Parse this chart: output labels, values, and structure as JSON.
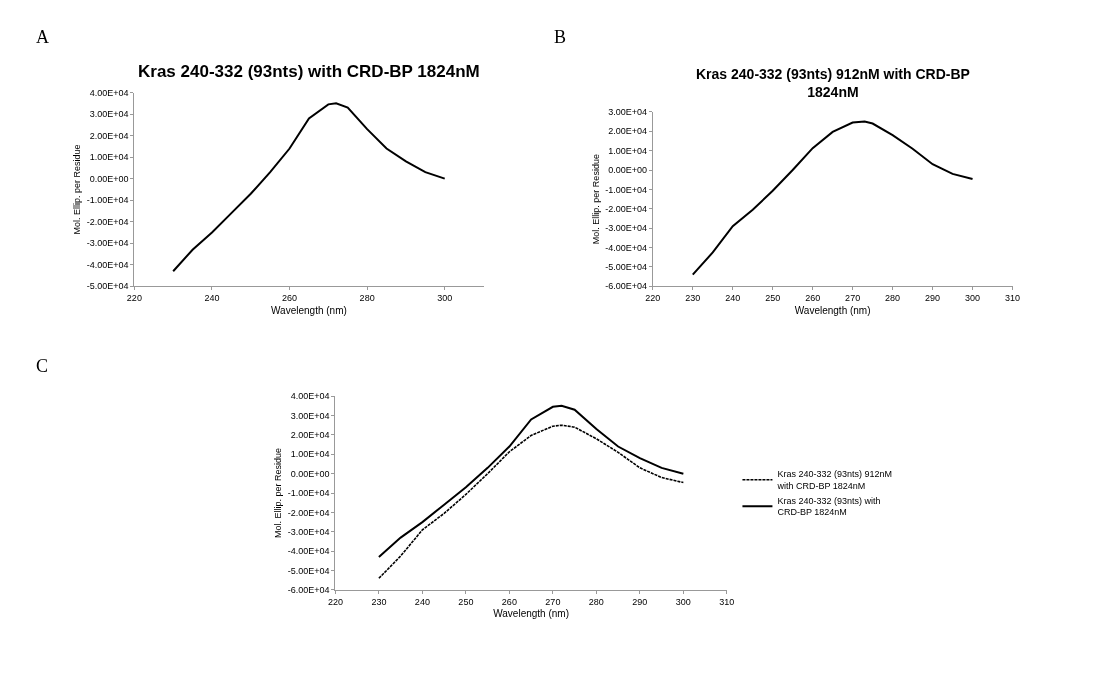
{
  "chart_data": [
    {
      "type": "line",
      "title": "Kras 240-332 (93nts) with CRD-BP 1824nM",
      "xlabel": "Wavelength (nm)",
      "ylabel": "Mol. Ellip. per Residue",
      "annotations": [
        "A"
      ],
      "x": [
        230,
        235,
        240,
        245,
        250,
        255,
        260,
        265,
        270,
        272,
        275,
        280,
        285,
        290,
        295,
        300
      ],
      "series": [
        {
          "color": "#000000",
          "line_style": "solid",
          "values": [
            -43000,
            -33000,
            -25000,
            -16000,
            -7000,
            3000,
            14000,
            28000,
            34500,
            35000,
            33000,
            23000,
            14000,
            8000,
            3000,
            0
          ]
        }
      ],
      "xlim": [
        220,
        310
      ],
      "ylim": [
        -50000,
        40000
      ],
      "xticks": [
        220,
        240,
        260,
        280,
        300
      ],
      "yticks": [
        {
          "value": -50000,
          "label": "-5.00E+04"
        },
        {
          "value": -40000,
          "label": "-4.00E+04"
        },
        {
          "value": -30000,
          "label": "-3.00E+04"
        },
        {
          "value": -20000,
          "label": "-2.00E+04"
        },
        {
          "value": -10000,
          "label": "-1.00E+04"
        },
        {
          "value": 0,
          "label": "0.00E+00"
        },
        {
          "value": 10000,
          "label": "1.00E+04"
        },
        {
          "value": 20000,
          "label": "2.00E+04"
        },
        {
          "value": 30000,
          "label": "3.00E+04"
        },
        {
          "value": 40000,
          "label": "4.00E+04"
        }
      ],
      "grid": false
    },
    {
      "type": "line",
      "title": "Kras 240-332 (93nts) 912nM with CRD-BP 1824nM",
      "xlabel": "Wavelength (nm)",
      "ylabel": "Mol. Ellip. per Residue",
      "annotations": [
        "B"
      ],
      "x": [
        230,
        235,
        240,
        245,
        250,
        255,
        260,
        265,
        270,
        273,
        275,
        280,
        285,
        290,
        295,
        300
      ],
      "series": [
        {
          "color": "#000000",
          "line_style": "solid",
          "values": [
            -54000,
            -42500,
            -29000,
            -20500,
            -10700,
            0,
            11300,
            19700,
            24500,
            25000,
            24000,
            18000,
            11000,
            3000,
            -2000,
            -4600
          ]
        }
      ],
      "xlim": [
        220,
        310
      ],
      "ylim": [
        -60000,
        30000
      ],
      "xticks": [
        220,
        230,
        240,
        250,
        260,
        270,
        280,
        290,
        300,
        310
      ],
      "yticks": [
        {
          "value": -60000,
          "label": "-6.00E+04"
        },
        {
          "value": -50000,
          "label": "-5.00E+04"
        },
        {
          "value": -40000,
          "label": "-4.00E+04"
        },
        {
          "value": -30000,
          "label": "-3.00E+04"
        },
        {
          "value": -20000,
          "label": "-2.00E+04"
        },
        {
          "value": -10000,
          "label": "-1.00E+04"
        },
        {
          "value": 0,
          "label": "0.00E+00"
        },
        {
          "value": 10000,
          "label": "1.00E+04"
        },
        {
          "value": 20000,
          "label": "2.00E+04"
        },
        {
          "value": 30000,
          "label": "3.00E+04"
        }
      ],
      "grid": false
    },
    {
      "type": "line",
      "xlabel": "Wavelength (nm)",
      "ylabel": "Mol. Ellip. per Residue",
      "annotations": [
        "C"
      ],
      "x": [
        230,
        235,
        240,
        245,
        250,
        255,
        260,
        265,
        270,
        272,
        275,
        280,
        285,
        290,
        295,
        300
      ],
      "series": [
        {
          "name": "Kras 240-332 (93nts) 912nM with CRD-BP 1824nM",
          "color": "#000000",
          "line_style": "dotted",
          "values": [
            -54000,
            -42500,
            -29000,
            -20500,
            -10700,
            0,
            11300,
            19700,
            24500,
            25000,
            24000,
            18000,
            11000,
            3000,
            -2000,
            -4600
          ]
        },
        {
          "name": "Kras 240-332 (93nts) with CRD-BP 1824nM",
          "color": "#000000",
          "line_style": "solid",
          "values": [
            -43000,
            -33000,
            -25000,
            -16000,
            -7000,
            3000,
            14000,
            28000,
            34500,
            35000,
            33000,
            23000,
            14000,
            8000,
            3000,
            0
          ]
        }
      ],
      "xlim": [
        220,
        310
      ],
      "ylim": [
        -60000,
        40000
      ],
      "xticks": [
        220,
        230,
        240,
        250,
        260,
        270,
        280,
        290,
        300,
        310
      ],
      "yticks": [
        {
          "value": -60000,
          "label": "-6.00E+04"
        },
        {
          "value": -50000,
          "label": "-5.00E+04"
        },
        {
          "value": -40000,
          "label": "-4.00E+04"
        },
        {
          "value": -30000,
          "label": "-3.00E+04"
        },
        {
          "value": -20000,
          "label": "-2.00E+04"
        },
        {
          "value": -10000,
          "label": "-1.00E+04"
        },
        {
          "value": 0,
          "label": "0.00E+00"
        },
        {
          "value": 10000,
          "label": "1.00E+04"
        },
        {
          "value": 20000,
          "label": "2.00E+04"
        },
        {
          "value": 30000,
          "label": "3.00E+04"
        },
        {
          "value": 40000,
          "label": "4.00E+04"
        }
      ],
      "grid": false,
      "legend": "right"
    }
  ]
}
